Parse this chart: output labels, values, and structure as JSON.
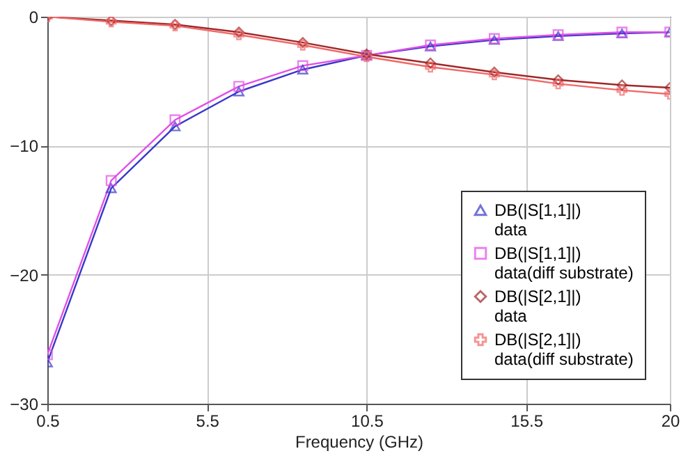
{
  "chart_data": {
    "type": "line",
    "xlabel": "Frequency (GHz)",
    "x": [
      0.5,
      2.5,
      4.5,
      6.5,
      8.5,
      10.5,
      12.5,
      14.5,
      16.5,
      18.5,
      20
    ],
    "series": [
      {
        "name": "DB(|S[1,1]|)\ndata",
        "color": "#3838c8",
        "marker": "triangle",
        "values": [
          -26.8,
          -13.3,
          -8.5,
          -5.8,
          -4.1,
          -3.0,
          -2.3,
          -1.8,
          -1.5,
          -1.3,
          -1.2
        ]
      },
      {
        "name": "DB(|S[1,1]|)\ndata(diff substrate)",
        "color": "#e050e8",
        "marker": "square",
        "values": [
          -26.2,
          -12.7,
          -8.0,
          -5.4,
          -3.8,
          -3.0,
          -2.2,
          -1.7,
          -1.4,
          -1.2,
          -1.2
        ]
      },
      {
        "name": "DB(|S[2,1]|)\ndata",
        "color": "#a02828",
        "marker": "diamond",
        "values": [
          0,
          -0.3,
          -0.6,
          -1.2,
          -2.0,
          -2.9,
          -3.6,
          -4.3,
          -4.9,
          -5.3,
          -5.5
        ]
      },
      {
        "name": "DB(|S[2,1]|)\ndata(diff substrate)",
        "color": "#f06868",
        "marker": "cross",
        "values": [
          0,
          -0.4,
          -0.7,
          -1.4,
          -2.2,
          -3.1,
          -3.9,
          -4.5,
          -5.2,
          -5.7,
          -6.0
        ]
      }
    ],
    "xlim": [
      0.5,
      20
    ],
    "xticks": [
      0.5,
      5.5,
      10.5,
      15.5,
      20
    ],
    "ylim": [
      -30,
      0
    ],
    "yticks": [
      0,
      -10,
      -20,
      -30
    ],
    "grid": true,
    "legend": "bottom right",
    "line_style": "solid"
  }
}
